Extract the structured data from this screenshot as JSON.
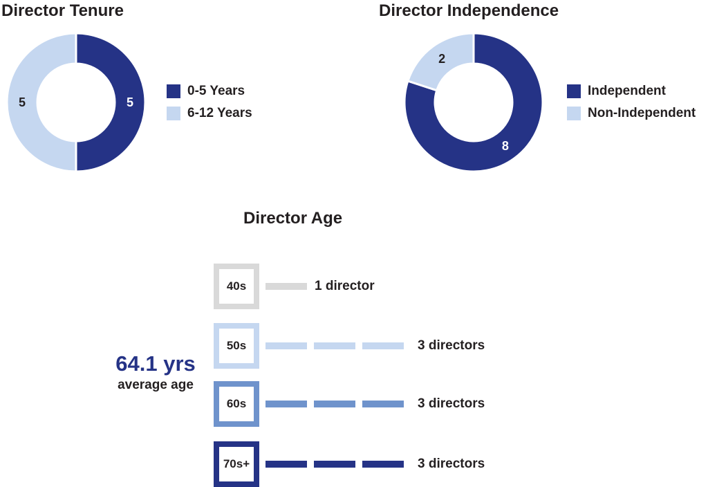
{
  "chart_data": [
    {
      "type": "pie",
      "title": "Director Tenure",
      "categories": [
        "0-5 Years",
        "6-12 Years"
      ],
      "values": [
        5,
        5
      ],
      "colors": [
        "#253386",
        "#c5d7f0"
      ],
      "legend": "right"
    },
    {
      "type": "pie",
      "title": "Director Independence",
      "categories": [
        "Independent",
        "Non-Independent"
      ],
      "values": [
        8,
        2
      ],
      "colors": [
        "#253386",
        "#c5d7f0"
      ],
      "legend": "right"
    },
    {
      "type": "bar",
      "title": "Director Age",
      "categories": [
        "40s",
        "50s",
        "60s",
        "70s+"
      ],
      "values": [
        1,
        3,
        3,
        3
      ],
      "value_labels": [
        "1 director",
        "3 directors",
        "3 directors",
        "3 directors"
      ],
      "colors": [
        "#d9d9d9",
        "#c5d7f0",
        "#6f93cc",
        "#253386"
      ],
      "annotation": {
        "value": "64.1 yrs",
        "caption": "average age"
      }
    }
  ]
}
